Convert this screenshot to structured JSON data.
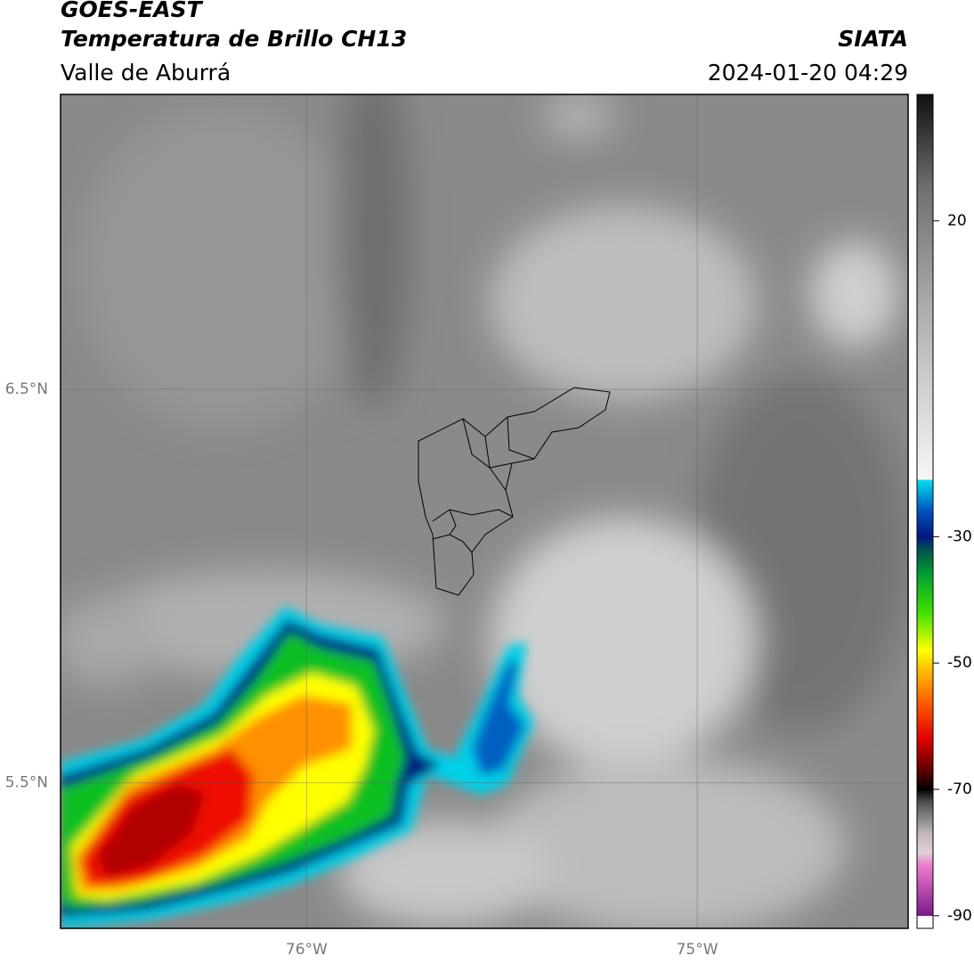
{
  "header": {
    "title": "GOES-EAST",
    "subtitle": "Temperatura de Brillo CH13",
    "region": "Valle de Aburrá",
    "source": "SIATA",
    "datetime": "2024-01-20 04:29"
  },
  "map": {
    "xlim": [
      -76.63,
      -74.46
    ],
    "ylim": [
      5.13,
      7.25
    ],
    "xticks": [
      {
        "value": -76,
        "label": "76°W"
      },
      {
        "value": -75,
        "label": "75°W"
      }
    ],
    "yticks": [
      {
        "value": 6.5,
        "label": "6.5°N"
      },
      {
        "value": 5.5,
        "label": "5.5°N"
      }
    ],
    "grid": true
  },
  "colorbar": {
    "lim": [
      -92,
      40
    ],
    "ticks": [
      20,
      -30,
      -50,
      -70,
      -90
    ],
    "stops": [
      {
        "value": -92,
        "color": "#ffffff"
      },
      {
        "value": -90,
        "color": "#ffffff"
      },
      {
        "value": -90,
        "color": "#7a1a8a"
      },
      {
        "value": -82,
        "color": "#f07ad0"
      },
      {
        "value": -80,
        "color": "#e0d0d8"
      },
      {
        "value": -77,
        "color": "#c0b8b8"
      },
      {
        "value": -72,
        "color": "#505050"
      },
      {
        "value": -70,
        "color": "#000000"
      },
      {
        "value": -68,
        "color": "#400000"
      },
      {
        "value": -62,
        "color": "#e00000"
      },
      {
        "value": -56,
        "color": "#ff6000"
      },
      {
        "value": -51,
        "color": "#ffc000"
      },
      {
        "value": -48,
        "color": "#ffff00"
      },
      {
        "value": -42,
        "color": "#40e000"
      },
      {
        "value": -36,
        "color": "#00a030"
      },
      {
        "value": -32,
        "color": "#005050"
      },
      {
        "value": -30,
        "color": "#001880"
      },
      {
        "value": -26,
        "color": "#0050c0"
      },
      {
        "value": -21,
        "color": "#00e0f0"
      },
      {
        "value": -21,
        "color": "#f8f8f8"
      },
      {
        "value": 5,
        "color": "#b0b0b0"
      },
      {
        "value": 25,
        "color": "#707070"
      },
      {
        "value": 40,
        "color": "#101010"
      }
    ]
  }
}
